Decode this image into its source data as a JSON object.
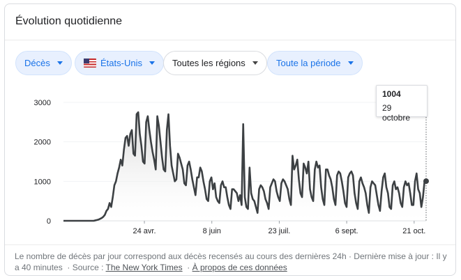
{
  "card": {
    "title": "Évolution quotidienne"
  },
  "filters": {
    "metric": "Décès",
    "country": "États-Unis",
    "region": "Toutes les régions",
    "period": "Toute la période"
  },
  "tooltip": {
    "value": "1004",
    "date": "29 octobre"
  },
  "footer": {
    "description": "Le nombre de décès par jour correspond aux décès recensés au cours des dernières 24h · Dernière mise à jour : Il y a 40 minutes",
    "source_prefix": "· Source :",
    "source_link": "The New York Times",
    "separator": "·",
    "about_link": "À propos de ces données"
  },
  "colors": {
    "line": "#3c4043",
    "accent": "#1a73e8",
    "chip_bg": "#e8f0fe"
  },
  "chart_data": {
    "type": "area",
    "title": "",
    "xlabel": "",
    "ylabel": "",
    "ylim": [
      0,
      3000
    ],
    "yticks": [
      "0",
      "1000",
      "2000",
      "3000"
    ],
    "x_ticks": [
      {
        "date": "2020-04-24",
        "label": "24 avr."
      },
      {
        "date": "2020-06-08",
        "label": "8 juin"
      },
      {
        "date": "2020-07-23",
        "label": "23 juil."
      },
      {
        "date": "2020-09-06",
        "label": "6 sept."
      },
      {
        "date": "2020-10-21",
        "label": "21 oct."
      }
    ],
    "x_start": "2020-03-01",
    "x_end": "2020-10-29",
    "series": [
      {
        "values": [
          0,
          0,
          0,
          0,
          0,
          0,
          0,
          0,
          0,
          0,
          0,
          0,
          0,
          0,
          0,
          0,
          0,
          0,
          0,
          0,
          10,
          20,
          30,
          50,
          70,
          100,
          150,
          250,
          300,
          450,
          350,
          600,
          900,
          1000,
          1200,
          1350,
          1550,
          1400,
          1800,
          2100,
          2150,
          1900,
          2200,
          2300,
          1700,
          1650,
          2700,
          2750,
          2200,
          1900,
          1500,
          1450,
          2500,
          2650,
          2300,
          2000,
          1750,
          1550,
          1300,
          2650,
          2400,
          2000,
          1600,
          1300,
          1250,
          2300,
          2700,
          1900,
          1400,
          1200,
          1000,
          1050,
          1700,
          1600,
          1450,
          1300,
          950,
          900,
          1400,
          1500,
          1300,
          1050,
          850,
          650,
          1100,
          1100,
          1350,
          1250,
          1000,
          800,
          550,
          500,
          1000,
          1100,
          800,
          950,
          600,
          500,
          450,
          900,
          1000,
          850,
          850,
          600,
          400,
          300,
          800,
          800,
          750,
          700,
          500,
          650,
          400,
          2450,
          600,
          350,
          300,
          1350,
          700,
          550,
          500,
          350,
          200,
          800,
          900,
          850,
          750,
          550,
          450,
          300,
          850,
          950,
          1050,
          1000,
          750,
          600,
          500,
          950,
          1050,
          1000,
          900,
          800,
          550,
          400,
          1650,
          1300,
          1400,
          1550,
          1050,
          700,
          600,
          1450,
          1350,
          1200,
          1500,
          800,
          600,
          500,
          1300,
          1500,
          1350,
          1400,
          850,
          550,
          400,
          1300,
          1300,
          1150,
          1050,
          850,
          550,
          400,
          1150,
          1250,
          1200,
          1000,
          750,
          450,
          350,
          1100,
          1200,
          1250,
          1150,
          700,
          450,
          300,
          1000,
          1100,
          950,
          850,
          700,
          400,
          200,
          850,
          1000,
          950,
          900,
          650,
          400,
          250,
          750,
          1100,
          1200,
          850,
          700,
          350,
          300,
          900,
          1000,
          800,
          850,
          700,
          450,
          350,
          850,
          1000,
          900,
          950,
          700,
          400,
          400,
          1000,
          1200,
          800,
          700,
          350,
          600,
          1000,
          1004
        ]
      }
    ]
  }
}
